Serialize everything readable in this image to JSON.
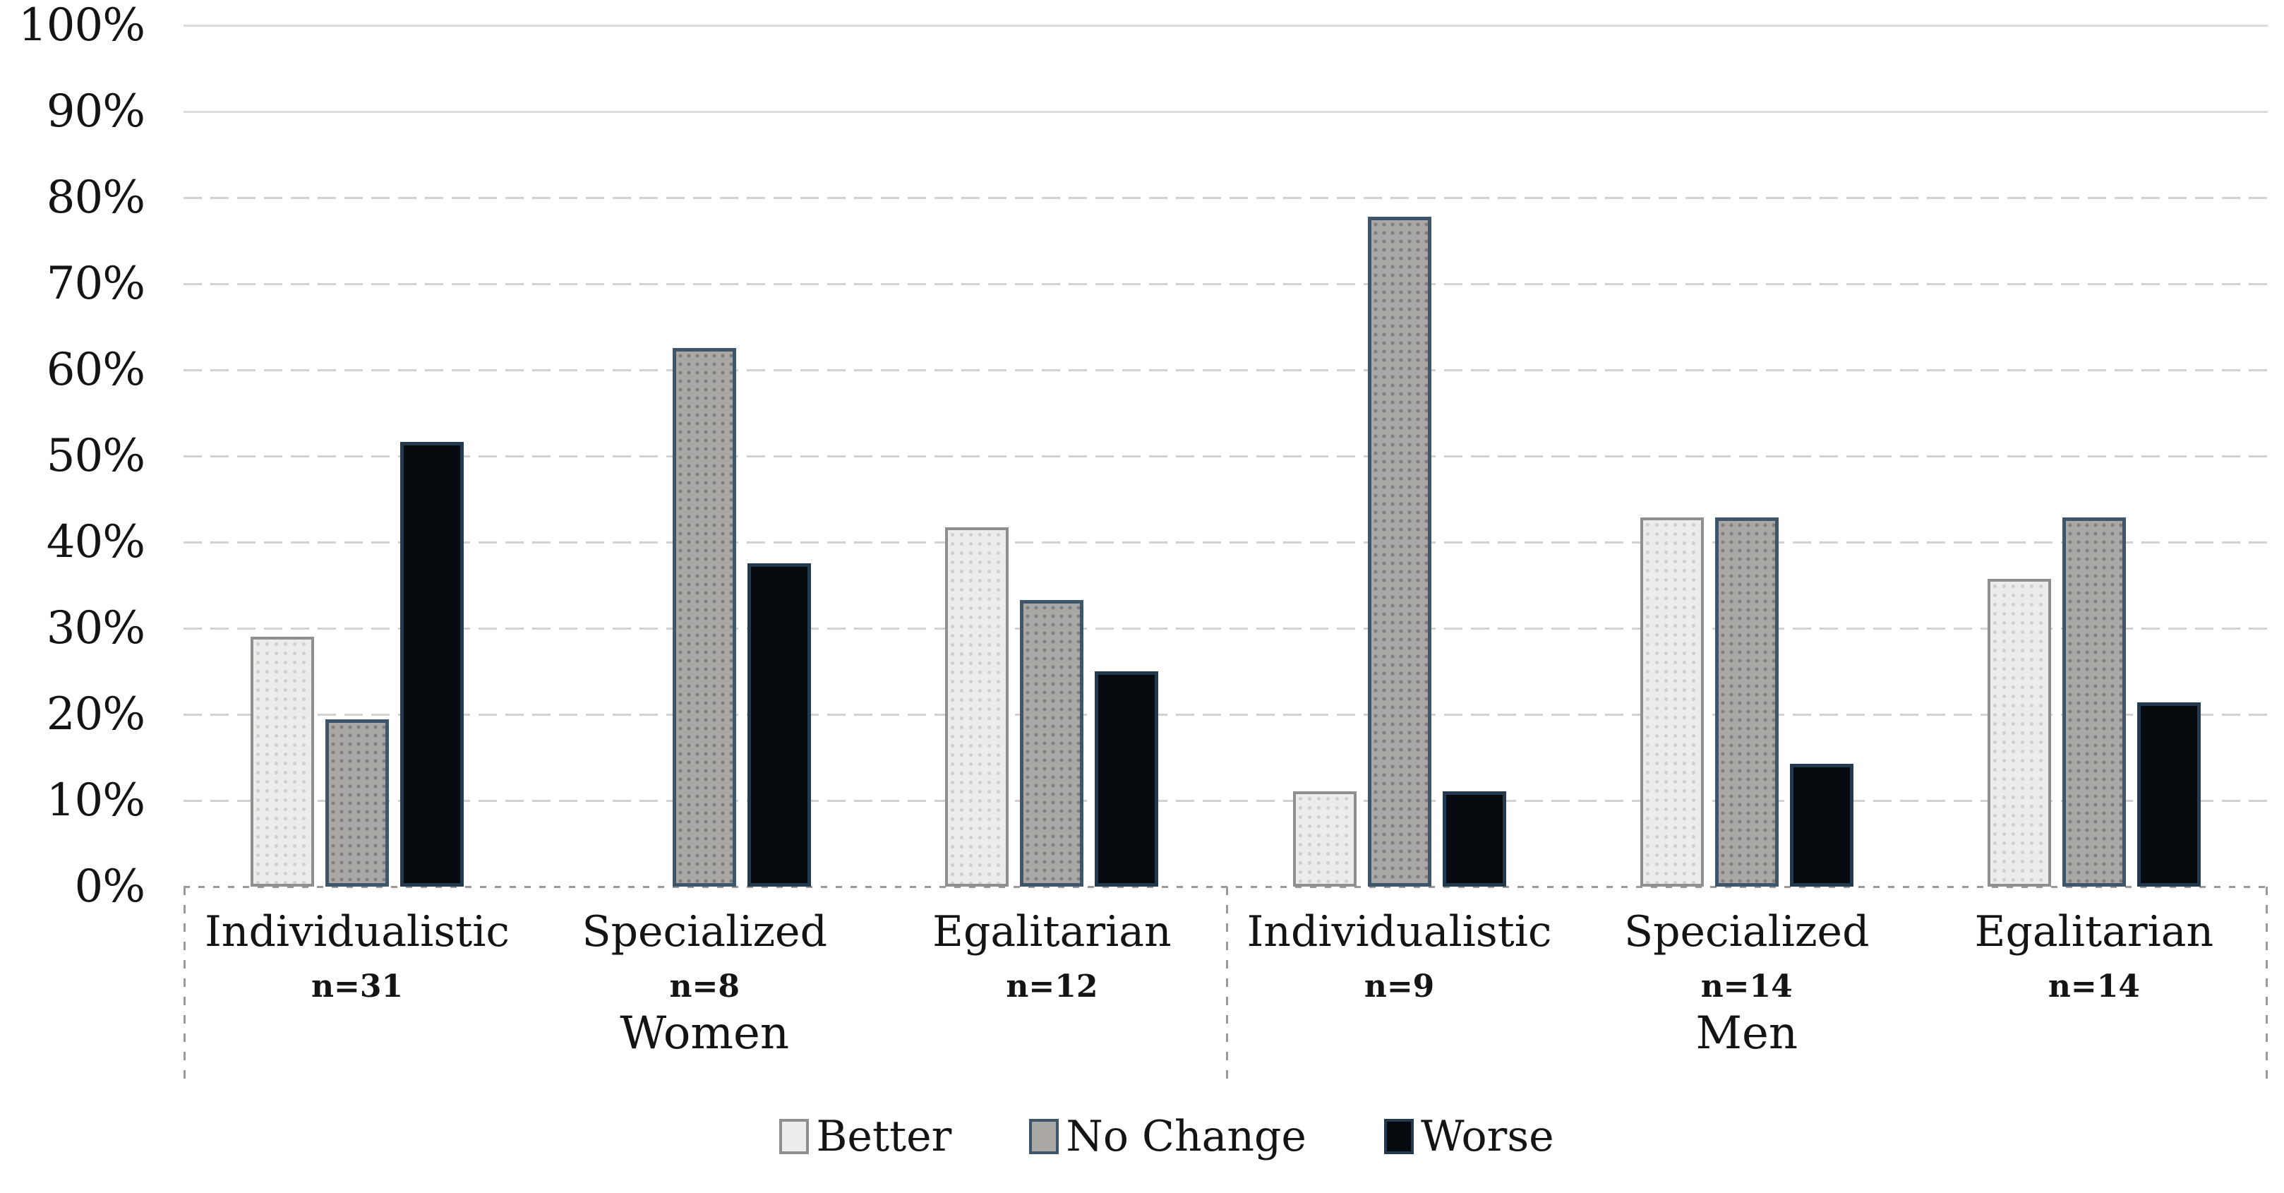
{
  "chart_data": {
    "type": "bar",
    "title": "",
    "xlabel": "",
    "ylabel": "",
    "ylim": [
      0,
      100
    ],
    "grid": "horizontal",
    "legend_position": "bottom",
    "y_ticks": [
      "100%",
      "90%",
      "80%",
      "70%",
      "60%",
      "50%",
      "40%",
      "30%",
      "20%",
      "10%",
      "0%"
    ],
    "categories": [
      {
        "label": "Individualistic",
        "n": "n=31",
        "group": "Women"
      },
      {
        "label": "Specialized",
        "n": "n=8",
        "group": "Women"
      },
      {
        "label": "Egalitarian",
        "n": "n=12",
        "group": "Women"
      },
      {
        "label": "Individualistic",
        "n": "n=9",
        "group": "Men"
      },
      {
        "label": "Specialized",
        "n": "n=14",
        "group": "Men"
      },
      {
        "label": "Egalitarian",
        "n": "n=14",
        "group": "Men"
      }
    ],
    "group_labels": [
      "Women",
      "Men"
    ],
    "series": [
      {
        "name": "Better",
        "fill": "#ececeb",
        "border": "#8f8f8f",
        "values": [
          29.0,
          0,
          41.7,
          11.1,
          42.9,
          35.7
        ]
      },
      {
        "name": "No Change",
        "fill": "#a9a8a5",
        "border": "#3f5569",
        "values": [
          19.4,
          62.5,
          33.3,
          77.8,
          42.9,
          42.9
        ]
      },
      {
        "name": "Worse",
        "fill": "#06090d",
        "border": "#23394d",
        "values": [
          51.6,
          37.5,
          25.0,
          11.1,
          14.3,
          21.4
        ]
      }
    ]
  },
  "colors": {
    "gridline": "#d2d2d2",
    "baseline": "#9a9a9a",
    "axis_box_dash": "#9a9a9a",
    "text": "#141414",
    "background": "#ffffff"
  }
}
